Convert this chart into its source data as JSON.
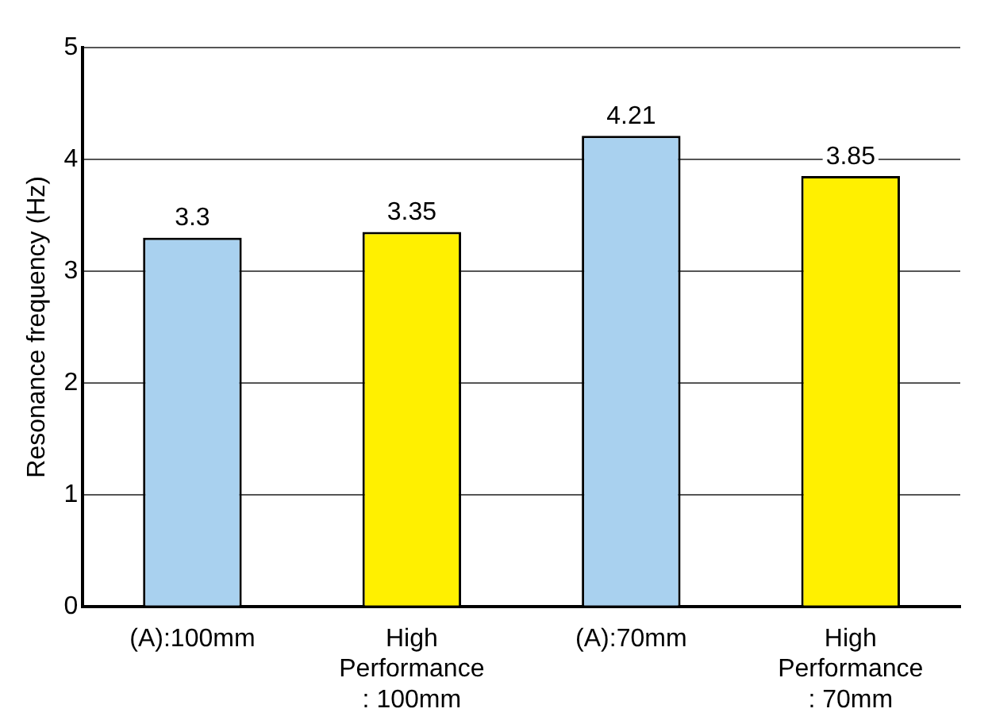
{
  "chart_data": {
    "type": "bar",
    "ylabel": "Resonance frequency (Hz)",
    "categories": [
      "(A):100mm",
      "High\nPerformance\n: 100mm",
      "(A):70mm",
      "High\nPerformance\n: 70mm"
    ],
    "values": [
      3.3,
      3.35,
      4.21,
      3.85
    ],
    "colors": [
      "#a9d1ef",
      "#fff000",
      "#a9d1ef",
      "#fff000"
    ],
    "ylim": [
      0,
      5
    ],
    "yticks": [
      0,
      1,
      2,
      3,
      4,
      5
    ],
    "grid": "y",
    "data_labels": true,
    "legend": false
  }
}
